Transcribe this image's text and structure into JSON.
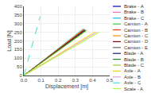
{
  "chart_data": {
    "type": "line",
    "xlabel": "Displacement [m]",
    "ylabel": "Load [N]",
    "xlim": [
      0,
      0.5
    ],
    "ylim": [
      0,
      400
    ],
    "xticks": [
      {
        "value": 0,
        "label": "0.0"
      },
      0.1,
      0.2,
      0.3,
      0.4,
      0.5
    ],
    "yticks": [
      0,
      50,
      100,
      150,
      200,
      250,
      300,
      350,
      400
    ],
    "grid": true,
    "legend": "right",
    "series": [
      {
        "name": "Brake - A",
        "color": "#0000CD",
        "line_style": "solid",
        "x": [
          0,
          0.355
        ],
        "values": [
          0,
          266.25
        ]
      },
      {
        "name": "Brake - B",
        "color": "#FF69B4",
        "line_style": "solid",
        "x": [
          0,
          0.35
        ],
        "values": [
          0,
          266
        ]
      },
      {
        "name": "Brake - C",
        "color": "#00BFFF",
        "line_style": "solid",
        "x": [
          0,
          0.345
        ],
        "values": [
          0,
          269.1
        ]
      },
      {
        "name": "Camion - A",
        "color": "#32CD32",
        "line_style": "solid",
        "x": [
          0,
          0.355
        ],
        "values": [
          0,
          262.7
        ]
      },
      {
        "name": "Camion - B",
        "color": "#FF4500",
        "line_style": "solid",
        "x": [
          0,
          0.35
        ],
        "values": [
          0,
          264.25
        ]
      },
      {
        "name": "Camion - C",
        "color": "#FF8C00",
        "line_style": "solid",
        "x": [
          0,
          0.35
        ],
        "values": [
          0,
          269.5
        ]
      },
      {
        "name": "Camion - D",
        "color": "#8B0000",
        "line_style": "solid",
        "x": [
          0,
          0.35
        ],
        "values": [
          0,
          261.8
        ]
      },
      {
        "name": "Camion - E",
        "color": "#696969",
        "line_style": "solid",
        "x": [
          0,
          0.355
        ],
        "values": [
          0,
          260.925
        ]
      },
      {
        "name": "Blade - A",
        "color": "#191970",
        "line_style": "solid",
        "x": [
          0,
          0.36
        ],
        "values": [
          0,
          262.8
        ]
      },
      {
        "name": "Blade - B",
        "color": "#228B22",
        "line_style": "solid",
        "x": [
          0,
          0.36
        ],
        "values": [
          0,
          259.2
        ]
      },
      {
        "name": "Blade - C",
        "color": "#9ACD32",
        "line_style": "solid",
        "x": [
          0,
          0.37
        ],
        "values": [
          0,
          262.7
        ]
      },
      {
        "name": "Axle - A",
        "color": "#FFD700",
        "line_style": "solid",
        "x": [
          0,
          0.415
        ],
        "values": [
          0,
          253.15
        ]
      },
      {
        "name": "Axle - B",
        "color": "#DDA0DD",
        "line_style": "solid",
        "x": [
          0,
          0.425
        ],
        "values": [
          0,
          250.75
        ]
      },
      {
        "name": "Axle - C",
        "color": "#40E0D0",
        "line_style": "dashed",
        "x": [
          0,
          0.095
        ],
        "values": [
          0,
          342
        ]
      },
      {
        "name": "Scale - A",
        "color": "#ADFF2F",
        "line_style": "solid",
        "x": [
          0,
          0.44
        ],
        "values": [
          0,
          250.8
        ]
      }
    ]
  }
}
